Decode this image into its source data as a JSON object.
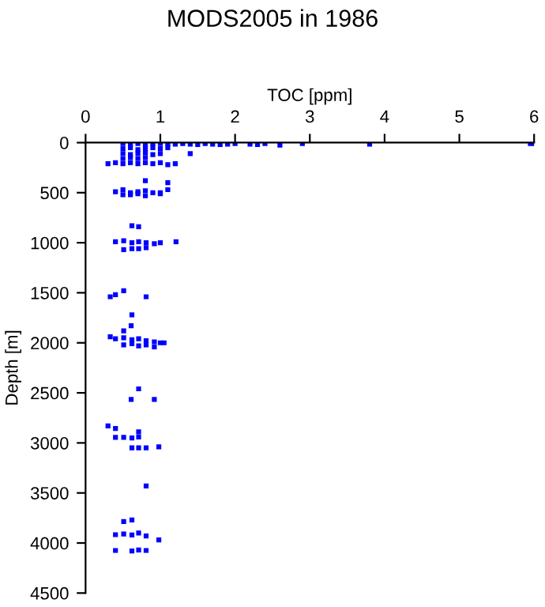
{
  "chart_data": {
    "type": "scatter",
    "title": "MODS2005 in 1986",
    "xlabel": "TOC [ppm]",
    "ylabel": "Depth [m]",
    "xlim": [
      0,
      6
    ],
    "xticks": [
      0,
      1,
      2,
      3,
      4,
      5,
      6
    ],
    "ylim": [
      4500,
      0
    ],
    "yticks": [
      0,
      500,
      1000,
      1500,
      2000,
      2500,
      3000,
      3500,
      4000,
      4500
    ],
    "marker": "square",
    "grid": false,
    "series": [
      {
        "color": "#0000ff",
        "x": [
          0.5,
          0.6,
          0.7,
          0.8,
          0.9,
          1.0,
          1.1,
          1.2,
          1.3,
          1.4,
          1.5,
          1.6,
          1.7,
          1.8,
          1.9,
          2.0,
          2.2,
          2.3,
          2.4,
          2.6,
          2.9,
          3.8,
          5.95,
          6.0,
          0.5,
          0.6,
          0.7,
          0.8,
          0.9,
          1.0,
          1.1,
          0.5,
          0.6,
          0.7,
          0.8,
          0.9,
          1.0,
          0.5,
          0.6,
          0.7,
          0.8,
          1.4,
          0.3,
          0.4,
          0.5,
          0.6,
          0.7,
          0.8,
          0.9,
          1.0,
          1.1,
          1.2,
          0.8,
          1.1,
          0.4,
          0.5,
          0.6,
          0.7,
          0.8,
          0.9,
          1.0,
          1.1,
          0.5,
          0.6,
          0.7,
          0.8,
          1.0,
          0.62,
          0.71,
          0.4,
          0.51,
          0.62,
          0.71,
          0.81,
          0.92,
          1.0,
          1.21,
          0.51,
          0.62,
          0.71,
          0.81,
          0.33,
          0.4,
          0.51,
          0.81,
          0.62,
          0.61,
          0.51,
          0.33,
          0.4,
          0.51,
          0.62,
          0.71,
          0.81,
          0.92,
          1.0,
          1.05,
          0.51,
          0.62,
          0.71,
          0.81,
          0.92,
          0.71,
          0.61,
          0.92,
          0.3,
          0.4,
          0.71,
          0.4,
          0.51,
          0.62,
          0.71,
          0.98,
          0.62,
          0.71,
          0.81,
          0.81,
          0.51,
          0.62,
          0.4,
          0.51,
          0.62,
          0.71,
          0.81,
          0.98,
          0.4,
          0.62,
          0.71,
          0.81
        ],
        "values": [
          10,
          15,
          10,
          15,
          10,
          10,
          15,
          15,
          10,
          15,
          20,
          10,
          15,
          20,
          15,
          10,
          15,
          20,
          10,
          25,
          10,
          15,
          10,
          10,
          60,
          50,
          70,
          60,
          50,
          60,
          50,
          110,
          120,
          110,
          100,
          120,
          110,
          160,
          150,
          160,
          150,
          110,
          210,
          200,
          210,
          200,
          210,
          200,
          210,
          200,
          220,
          210,
          380,
          400,
          490,
          470,
          500,
          490,
          480,
          500,
          510,
          470,
          520,
          520,
          510,
          530,
          500,
          830,
          840,
          990,
          980,
          1000,
          990,
          1000,
          1010,
          1000,
          990,
          1070,
          1060,
          1060,
          1050,
          1540,
          1520,
          1480,
          1540,
          1720,
          1830,
          1880,
          1940,
          1960,
          1950,
          1970,
          1960,
          1980,
          1990,
          2000,
          2000,
          2020,
          2010,
          2030,
          2020,
          2040,
          2460,
          2565,
          2565,
          2830,
          2855,
          2890,
          2945,
          2945,
          2950,
          2940,
          3040,
          3050,
          3050,
          3050,
          3430,
          3785,
          3770,
          3917,
          3910,
          3920,
          3900,
          3930,
          3970,
          4075,
          4080,
          4070,
          4075
        ]
      }
    ]
  }
}
